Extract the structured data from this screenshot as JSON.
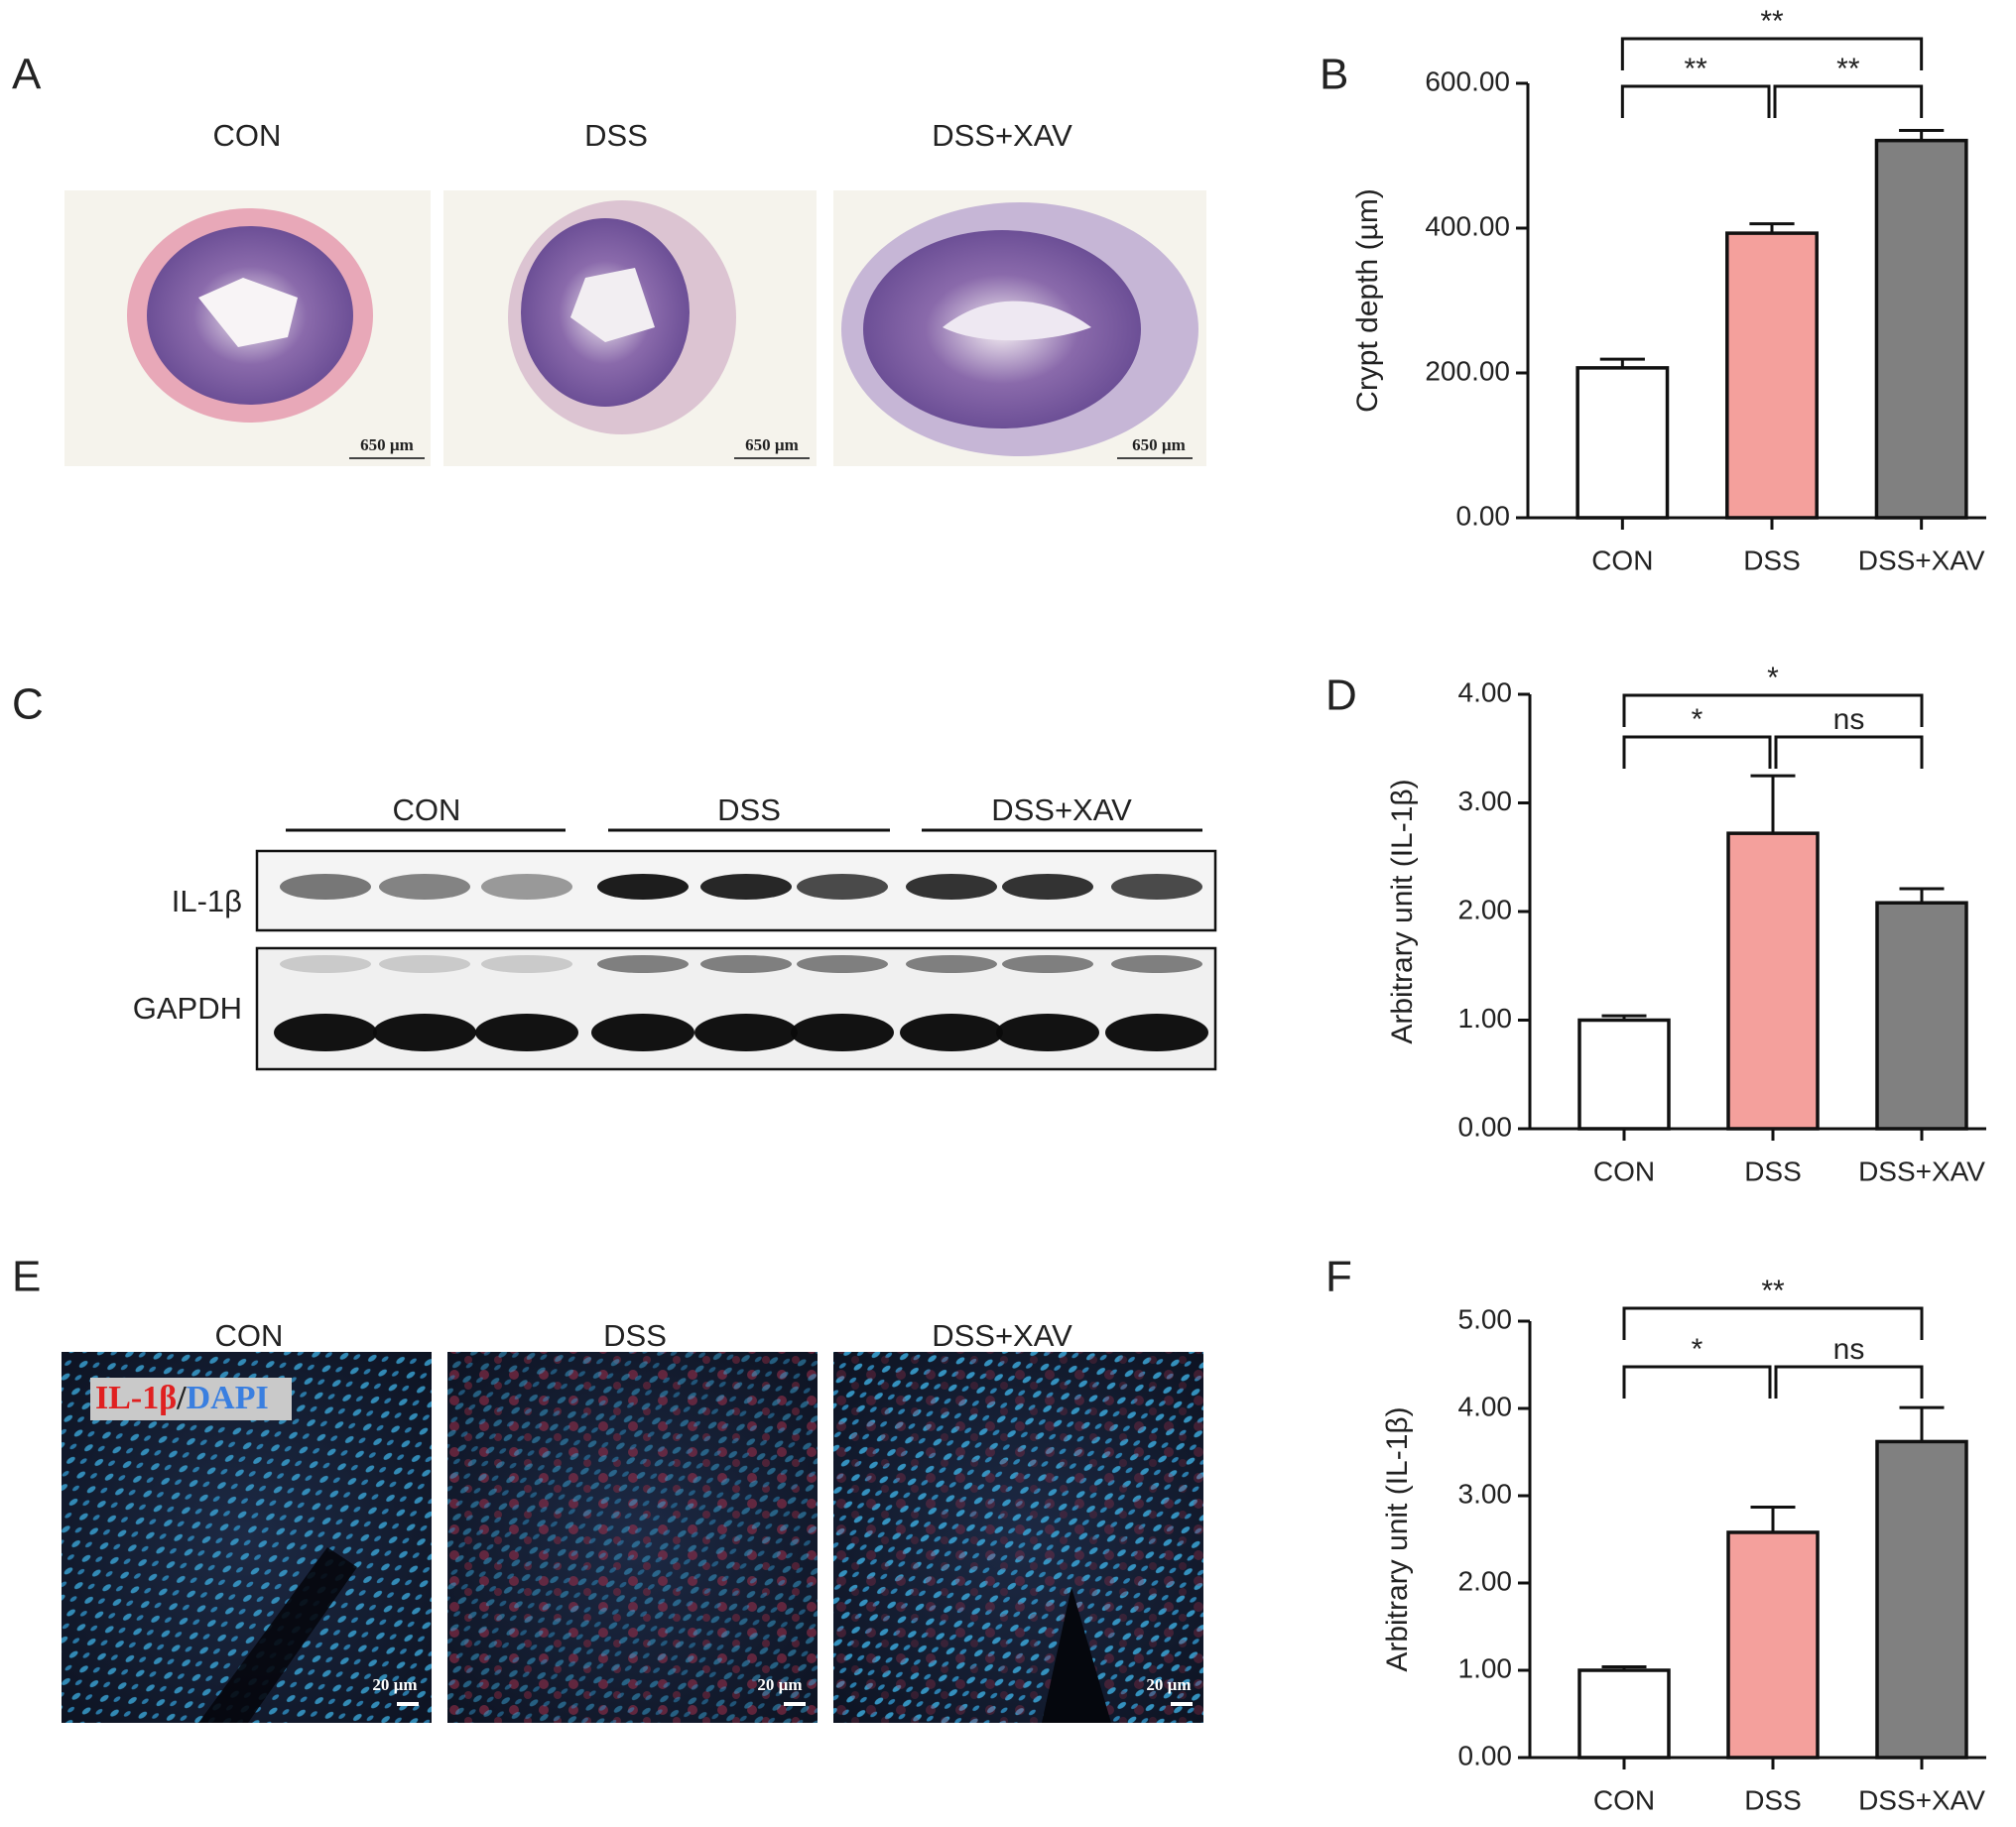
{
  "panels": [
    "A",
    "B",
    "C",
    "D",
    "E",
    "F"
  ],
  "histology": {
    "groups": [
      "CON",
      "DSS",
      "DSS+XAV"
    ],
    "scale_bar": "650 µm"
  },
  "western_blot": {
    "groups": [
      "CON",
      "DSS",
      "DSS+XAV"
    ],
    "proteins": [
      "IL-1β",
      "GAPDH"
    ]
  },
  "immunofluorescence": {
    "groups": [
      "CON",
      "DSS",
      "DSS+XAV"
    ],
    "stain": [
      "IL-1β",
      "/",
      "DAPI"
    ],
    "scale_bar": "20 µm"
  },
  "chart_data": [
    {
      "type": "bar",
      "y_label": "Crypt depth (µm)",
      "categories": [
        "CON",
        "DSS",
        "DSS+XAV"
      ],
      "values": [
        207,
        393,
        521
      ],
      "errors": [
        12,
        13,
        14
      ],
      "colors": [
        "#ffffff",
        "#f4a09c",
        "#808080"
      ],
      "ylim": [
        0,
        600
      ],
      "yticks": [
        {
          "value": 0,
          "label": "0.00"
        },
        {
          "value": 200,
          "label": "200.00"
        },
        {
          "value": 400,
          "label": "400.00"
        },
        {
          "value": 600,
          "label": "600.00"
        }
      ],
      "annotations": [
        {
          "text": "**",
          "pair": [
            0,
            1
          ]
        },
        {
          "text": "**",
          "pair": [
            1,
            2
          ]
        },
        {
          "text": "**",
          "pair": [
            0,
            2
          ]
        }
      ]
    },
    {
      "type": "bar",
      "y_label": "Arbitrary unit (IL-1β)",
      "categories": [
        "CON",
        "DSS",
        "DSS+XAV"
      ],
      "values": [
        1.0,
        2.72,
        2.08
      ],
      "errors": [
        0.04,
        0.53,
        0.13
      ],
      "colors": [
        "#ffffff",
        "#f4a09c",
        "#808080"
      ],
      "ylim": [
        0,
        4
      ],
      "yticks": [
        {
          "value": 0,
          "label": "0.00"
        },
        {
          "value": 1,
          "label": "1.00"
        },
        {
          "value": 2,
          "label": "2.00"
        },
        {
          "value": 3,
          "label": "3.00"
        },
        {
          "value": 4,
          "label": "4.00"
        }
      ],
      "annotations": [
        {
          "text": "*",
          "pair": [
            0,
            1
          ]
        },
        {
          "text": "ns",
          "pair": [
            1,
            2
          ]
        },
        {
          "text": "*",
          "pair": [
            0,
            2
          ]
        }
      ]
    },
    {
      "type": "bar",
      "y_label": "Arbitrary unit (IL-1β)",
      "categories": [
        "CON",
        "DSS",
        "DSS+XAV"
      ],
      "values": [
        1.0,
        2.58,
        3.62
      ],
      "errors": [
        0.04,
        0.29,
        0.39
      ],
      "colors": [
        "#ffffff",
        "#f4a09c",
        "#808080"
      ],
      "ylim": [
        0,
        5
      ],
      "yticks": [
        {
          "value": 0,
          "label": "0.00"
        },
        {
          "value": 1,
          "label": "1.00"
        },
        {
          "value": 2,
          "label": "2.00"
        },
        {
          "value": 3,
          "label": "3.00"
        },
        {
          "value": 4,
          "label": "4.00"
        },
        {
          "value": 5,
          "label": "5.00"
        }
      ],
      "annotations": [
        {
          "text": "*",
          "pair": [
            0,
            1
          ]
        },
        {
          "text": "ns",
          "pair": [
            1,
            2
          ]
        },
        {
          "text": "**",
          "pair": [
            0,
            2
          ]
        }
      ]
    }
  ]
}
